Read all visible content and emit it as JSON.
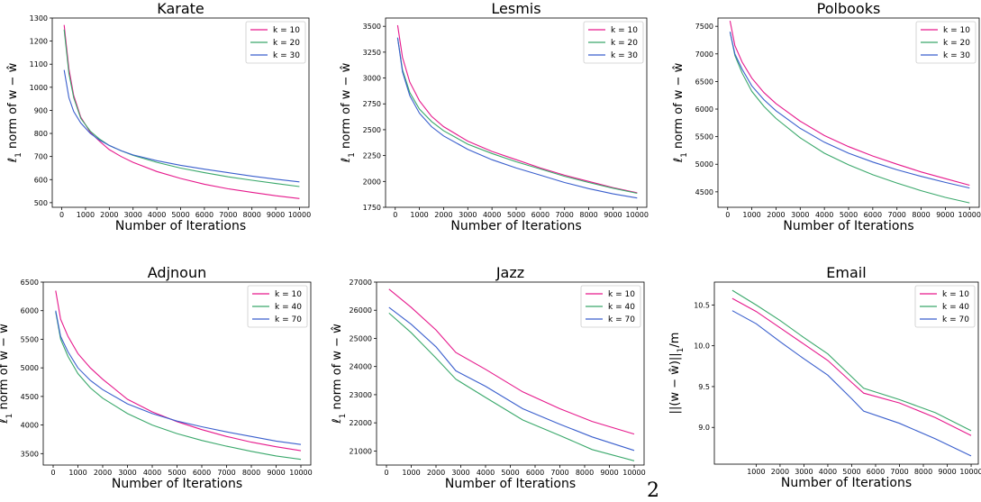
{
  "page_number": "2",
  "colors": {
    "k_first": "#e6198c",
    "k_second": "#3aa86b",
    "k_third": "#3a5fcd"
  },
  "chart_data": [
    {
      "type": "line",
      "title": "Karate",
      "xlabel": "Number of Iterations",
      "ylabel": "ℓ1 norm of w − ŵ",
      "xlim": [
        -400,
        10400
      ],
      "ylim": [
        480,
        1300
      ],
      "xticks": [
        0,
        1000,
        2000,
        3000,
        4000,
        5000,
        6000,
        7000,
        8000,
        9000,
        10000
      ],
      "yticks": [
        500,
        600,
        700,
        800,
        900,
        1000,
        1100,
        1200,
        1300
      ],
      "ytick_labels": [
        "500",
        "600",
        "700",
        "800",
        "900",
        "1000",
        "1100",
        "1200",
        "1300"
      ],
      "legend": "top-right",
      "series": [
        {
          "name": "k = 10",
          "x": [
            100,
            300,
            500,
            800,
            1200,
            1600,
            2000,
            2500,
            3000,
            4000,
            5000,
            6000,
            7000,
            8000,
            9000,
            10000
          ],
          "y": [
            1270,
            1080,
            965,
            870,
            805,
            765,
            730,
            700,
            675,
            635,
            605,
            580,
            560,
            545,
            530,
            518
          ]
        },
        {
          "name": "k = 20",
          "x": [
            100,
            300,
            500,
            800,
            1200,
            1600,
            2000,
            2500,
            3000,
            4000,
            5000,
            6000,
            7000,
            8000,
            9000,
            10000
          ],
          "y": [
            1250,
            1060,
            955,
            865,
            810,
            775,
            748,
            725,
            705,
            675,
            650,
            630,
            612,
            597,
            583,
            570
          ]
        },
        {
          "name": "k = 30",
          "x": [
            100,
            300,
            500,
            800,
            1200,
            1600,
            2000,
            2500,
            3000,
            4000,
            5000,
            6000,
            7000,
            8000,
            9000,
            10000
          ],
          "y": [
            1075,
            955,
            895,
            845,
            800,
            770,
            748,
            725,
            707,
            682,
            662,
            645,
            630,
            615,
            602,
            590
          ]
        }
      ]
    },
    {
      "type": "line",
      "title": "Lesmis",
      "xlabel": "Number of Iterations",
      "ylabel": "ℓ1 norm of w − ŵ",
      "xlim": [
        -400,
        10400
      ],
      "ylim": [
        1750,
        3580
      ],
      "xticks": [
        0,
        1000,
        2000,
        3000,
        4000,
        5000,
        6000,
        7000,
        8000,
        9000,
        10000
      ],
      "yticks": [
        1750,
        2000,
        2250,
        2500,
        2750,
        3000,
        3250,
        3500
      ],
      "ytick_labels": [
        "1750",
        "2000",
        "2250",
        "2500",
        "2750",
        "3000",
        "3250",
        "3500"
      ],
      "legend": "top-right",
      "series": [
        {
          "name": "k = 10",
          "x": [
            100,
            300,
            600,
            1000,
            1500,
            2000,
            3000,
            4000,
            5000,
            6000,
            7000,
            8000,
            9000,
            10000
          ],
          "y": [
            3510,
            3200,
            2960,
            2780,
            2630,
            2530,
            2390,
            2290,
            2210,
            2130,
            2060,
            2000,
            1940,
            1890
          ]
        },
        {
          "name": "k = 20",
          "x": [
            100,
            300,
            600,
            1000,
            1500,
            2000,
            3000,
            4000,
            5000,
            6000,
            7000,
            8000,
            9000,
            10000
          ],
          "y": [
            3390,
            3080,
            2860,
            2700,
            2580,
            2490,
            2360,
            2270,
            2190,
            2120,
            2050,
            1990,
            1935,
            1885
          ]
        },
        {
          "name": "k = 30",
          "x": [
            100,
            300,
            600,
            1000,
            1500,
            2000,
            3000,
            4000,
            5000,
            6000,
            7000,
            8000,
            9000,
            10000
          ],
          "y": [
            3390,
            3060,
            2830,
            2660,
            2530,
            2440,
            2310,
            2210,
            2130,
            2060,
            1990,
            1930,
            1880,
            1840
          ]
        }
      ]
    },
    {
      "type": "line",
      "title": "Polbooks",
      "xlabel": "Number of Iterations",
      "ylabel": "ℓ1 norm of w − ŵ",
      "xlim": [
        -400,
        10400
      ],
      "ylim": [
        4220,
        7650
      ],
      "xticks": [
        0,
        1000,
        2000,
        3000,
        4000,
        5000,
        6000,
        7000,
        8000,
        9000,
        10000
      ],
      "yticks": [
        4500,
        5000,
        5500,
        6000,
        6500,
        7000,
        7500
      ],
      "ytick_labels": [
        "4500",
        "5000",
        "5500",
        "6000",
        "6500",
        "7000",
        "7500"
      ],
      "legend": "top-right",
      "series": [
        {
          "name": "k = 10",
          "x": [
            100,
            300,
            600,
            1000,
            1500,
            2000,
            3000,
            4000,
            5000,
            6000,
            7000,
            8000,
            9000,
            10000
          ],
          "y": [
            7600,
            7150,
            6850,
            6560,
            6300,
            6100,
            5780,
            5520,
            5320,
            5150,
            5000,
            4860,
            4740,
            4620
          ]
        },
        {
          "name": "k = 20",
          "x": [
            100,
            300,
            600,
            1000,
            1500,
            2000,
            3000,
            4000,
            5000,
            6000,
            7000,
            8000,
            9000,
            10000
          ],
          "y": [
            7400,
            6970,
            6650,
            6320,
            6050,
            5830,
            5480,
            5200,
            4990,
            4810,
            4660,
            4520,
            4400,
            4300
          ]
        },
        {
          "name": "k = 30",
          "x": [
            100,
            300,
            600,
            1000,
            1500,
            2000,
            3000,
            4000,
            5000,
            6000,
            7000,
            8000,
            9000,
            10000
          ],
          "y": [
            7400,
            7000,
            6720,
            6420,
            6170,
            5970,
            5650,
            5400,
            5200,
            5040,
            4900,
            4780,
            4670,
            4570
          ]
        }
      ]
    },
    {
      "type": "line",
      "title": "Adjnoun",
      "xlabel": "Number of Iterations",
      "ylabel": "ℓ1 norm of w − ŵ",
      "xlim": [
        -400,
        10400
      ],
      "ylim": [
        3300,
        6500
      ],
      "xticks": [
        0,
        1000,
        2000,
        3000,
        4000,
        5000,
        6000,
        7000,
        8000,
        9000,
        10000
      ],
      "yticks": [
        3500,
        4000,
        4500,
        5000,
        5500,
        6000,
        6500
      ],
      "ytick_labels": [
        "3500",
        "4000",
        "4500",
        "5000",
        "5500",
        "6000",
        "6500"
      ],
      "legend": "top-right",
      "series": [
        {
          "name": "k = 10",
          "x": [
            100,
            300,
            600,
            1000,
            1500,
            2000,
            3000,
            4000,
            5000,
            6000,
            7000,
            8000,
            9000,
            10000
          ],
          "y": [
            6350,
            5850,
            5550,
            5250,
            5000,
            4800,
            4450,
            4230,
            4060,
            3920,
            3800,
            3700,
            3620,
            3550
          ]
        },
        {
          "name": "k = 40",
          "x": [
            100,
            300,
            600,
            1000,
            1500,
            2000,
            3000,
            4000,
            5000,
            6000,
            7000,
            8000,
            9000,
            10000
          ],
          "y": [
            5980,
            5500,
            5200,
            4900,
            4650,
            4470,
            4200,
            4000,
            3850,
            3730,
            3630,
            3540,
            3460,
            3400
          ]
        },
        {
          "name": "k = 70",
          "x": [
            100,
            300,
            600,
            1000,
            1500,
            2000,
            3000,
            4000,
            5000,
            6000,
            7000,
            8000,
            9000,
            10000
          ],
          "y": [
            6000,
            5550,
            5280,
            5000,
            4780,
            4620,
            4370,
            4200,
            4070,
            3970,
            3880,
            3800,
            3720,
            3660
          ]
        }
      ]
    },
    {
      "type": "line",
      "title": "Jazz",
      "xlabel": "Number of Iterations",
      "ylabel": "ℓ1 norm of w − ŵ",
      "xlim": [
        -400,
        10400
      ],
      "ylim": [
        20500,
        27000
      ],
      "xticks": [
        0,
        1000,
        2000,
        3000,
        4000,
        5000,
        6000,
        7000,
        8000,
        9000,
        10000
      ],
      "yticks": [
        21000,
        22000,
        23000,
        24000,
        25000,
        26000,
        27000
      ],
      "ytick_labels": [
        "21000",
        "22000",
        "23000",
        "24000",
        "25000",
        "26000",
        "27000"
      ],
      "legend": "top-right",
      "series": [
        {
          "name": "k = 10",
          "x": [
            100,
            1000,
            2000,
            2800,
            4000,
            5500,
            7000,
            8300,
            10000
          ],
          "y": [
            26750,
            26100,
            25300,
            24500,
            23900,
            23100,
            22500,
            22050,
            21600
          ]
        },
        {
          "name": "k = 40",
          "x": [
            100,
            1000,
            2000,
            2800,
            4000,
            5500,
            7000,
            8300,
            10000
          ],
          "y": [
            25900,
            25200,
            24300,
            23550,
            22900,
            22100,
            21550,
            21050,
            20650
          ]
        },
        {
          "name": "k = 70",
          "x": [
            100,
            1000,
            2000,
            2800,
            4000,
            5500,
            7000,
            8300,
            10000
          ],
          "y": [
            26100,
            25500,
            24700,
            23850,
            23300,
            22500,
            21950,
            21500,
            21020
          ]
        }
      ]
    },
    {
      "type": "line",
      "title": "Email",
      "xlabel": "Number of Iterations",
      "ylabel": "||(w − ŵ)||1/m",
      "xlim": [
        -750,
        10300
      ],
      "ylim": [
        8.55,
        10.78
      ],
      "xticks": [
        1000,
        2000,
        3000,
        4000,
        5000,
        6000,
        7000,
        8000,
        9000,
        10000
      ],
      "yticks": [
        9.0,
        9.5,
        10.0,
        10.5
      ],
      "ytick_labels": [
        "9.0",
        "9.5",
        "10.0",
        "10.5"
      ],
      "legend": "top-right",
      "series": [
        {
          "name": "k = 10",
          "x": [
            0,
            1000,
            2000,
            3000,
            4000,
            5000,
            5500,
            7000,
            8500,
            10000
          ],
          "y": [
            10.58,
            10.42,
            10.22,
            10.02,
            9.82,
            9.55,
            9.42,
            9.3,
            9.12,
            8.9
          ]
        },
        {
          "name": "k = 40",
          "x": [
            0,
            1000,
            2000,
            3000,
            4000,
            5000,
            5500,
            7000,
            8500,
            10000
          ],
          "y": [
            10.68,
            10.5,
            10.31,
            10.1,
            9.9,
            9.62,
            9.48,
            9.34,
            9.18,
            8.96
          ]
        },
        {
          "name": "k = 70",
          "x": [
            0,
            1000,
            2000,
            3000,
            4000,
            5000,
            5500,
            7000,
            8500,
            10000
          ],
          "y": [
            10.43,
            10.27,
            10.05,
            9.84,
            9.64,
            9.35,
            9.2,
            9.05,
            8.86,
            8.65
          ]
        }
      ]
    }
  ]
}
